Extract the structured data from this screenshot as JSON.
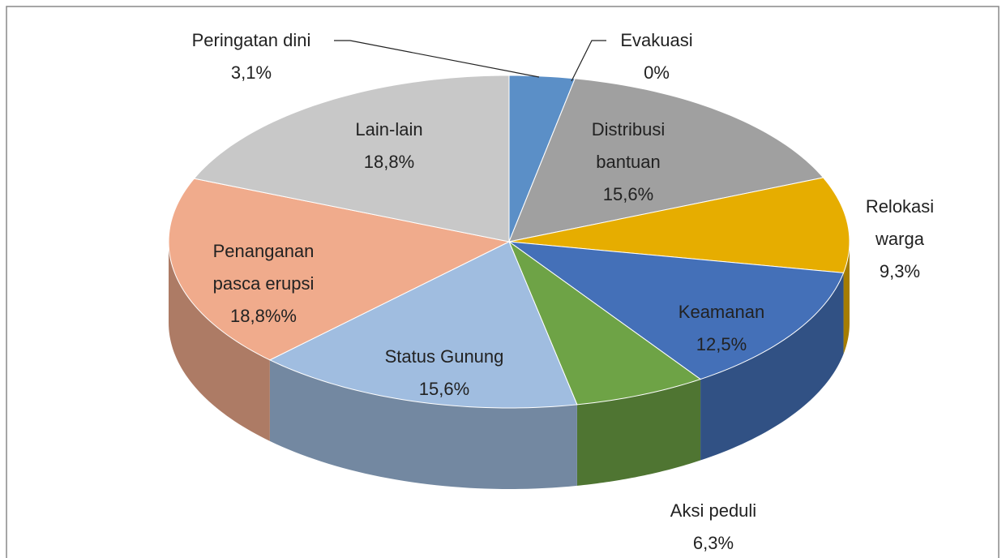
{
  "chart_data": {
    "type": "pie3d",
    "categories": [
      "Peringatan dini",
      "Evakuasi",
      "Distribusi\nbantuan",
      "Relokasi\nwarga",
      "Keamanan",
      "Aksi peduli",
      "Status Gunung",
      "Penanganan\npasca erupsi",
      "Lain-lain"
    ],
    "values": [
      3.1,
      0,
      15.6,
      9.3,
      12.5,
      6.3,
      15.6,
      18.8,
      18.8
    ],
    "value_labels": [
      "3,1%",
      "0%",
      "15,6%",
      "9,3%",
      "12,5%",
      "6,3%",
      "15,6%",
      "18,8%%",
      "18,8%"
    ],
    "colors": [
      "#5b8fc7",
      "#c0504d",
      "#a0a0a0",
      "#e6ad00",
      "#4470b8",
      "#6ea346",
      "#a0bde0",
      "#f0ab8c",
      "#c8c8c8"
    ]
  }
}
